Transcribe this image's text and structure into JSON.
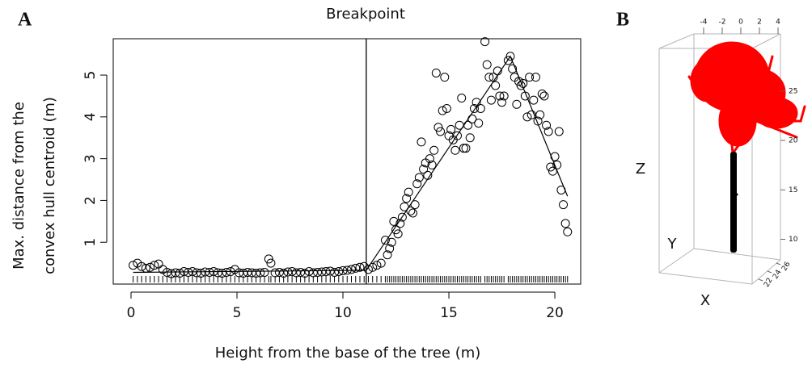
{
  "chart_data": [
    {
      "type": "scatter",
      "panel_label": "A",
      "title": "Breakpoint",
      "x_label": "Height from the base of the tree (m)",
      "y_label": [
        "Max. distance from the",
        "convex hull centroid (m)"
      ],
      "xlim": [
        -0.84,
        21.22
      ],
      "ylim": [
        0,
        5.87
      ],
      "xticks": [
        0,
        5,
        10,
        15,
        20
      ],
      "yticks": [
        1,
        2,
        3,
        4,
        5
      ],
      "breakpoint": 11.1,
      "rug": true,
      "series": [
        {
          "type": "scatter",
          "color": "#000000",
          "x": [
            0.1,
            0.3,
            0.5,
            0.7,
            0.9,
            1.1,
            1.3,
            1.5,
            1.7,
            1.9,
            2.1,
            2.3,
            2.5,
            2.7,
            2.9,
            3.1,
            3.3,
            3.5,
            3.7,
            3.9,
            4.1,
            4.3,
            4.5,
            4.7,
            4.9,
            5.1,
            5.3,
            5.5,
            5.7,
            5.9,
            6.1,
            6.3,
            6.5,
            6.6,
            6.8,
            7.0,
            7.2,
            7.4,
            7.6,
            7.8,
            8.0,
            8.2,
            8.4,
            8.6,
            8.8,
            9.0,
            9.2,
            9.4,
            9.6,
            9.8,
            10.0,
            10.2,
            10.4,
            10.6,
            10.8,
            11.0,
            11.2,
            11.4,
            11.6,
            11.8,
            12.0,
            12.1,
            12.2,
            12.3,
            12.4,
            12.5,
            12.6,
            12.7,
            12.8,
            12.9,
            13.0,
            13.1,
            13.2,
            13.3,
            13.4,
            13.5,
            13.6,
            13.7,
            13.8,
            13.9,
            14.0,
            14.1,
            14.2,
            14.3,
            14.4,
            14.5,
            14.6,
            14.7,
            14.8,
            14.9,
            15.0,
            15.1,
            15.2,
            15.3,
            15.4,
            15.5,
            15.6,
            15.7,
            15.8,
            15.9,
            16.0,
            16.1,
            16.2,
            16.3,
            16.4,
            16.5,
            16.7,
            16.8,
            16.9,
            17.0,
            17.1,
            17.2,
            17.3,
            17.4,
            17.5,
            17.6,
            17.8,
            17.9,
            18.0,
            18.1,
            18.2,
            18.3,
            18.4,
            18.5,
            18.6,
            18.7,
            18.8,
            18.9,
            19.0,
            19.1,
            19.2,
            19.3,
            19.4,
            19.5,
            19.6,
            19.7,
            19.8,
            19.9,
            20.0,
            20.1,
            20.2,
            20.3,
            20.4,
            20.5,
            20.6
          ],
          "values": [
            0.45,
            0.5,
            0.42,
            0.38,
            0.4,
            0.45,
            0.48,
            0.35,
            0.28,
            0.25,
            0.27,
            0.26,
            0.3,
            0.28,
            0.3,
            0.27,
            0.26,
            0.29,
            0.28,
            0.3,
            0.27,
            0.26,
            0.28,
            0.3,
            0.35,
            0.27,
            0.26,
            0.28,
            0.27,
            0.26,
            0.27,
            0.28,
            0.6,
            0.5,
            0.27,
            0.28,
            0.26,
            0.29,
            0.3,
            0.27,
            0.28,
            0.26,
            0.3,
            0.27,
            0.28,
            0.29,
            0.3,
            0.31,
            0.28,
            0.3,
            0.32,
            0.33,
            0.35,
            0.38,
            0.4,
            0.42,
            0.35,
            0.4,
            0.45,
            0.5,
            1.05,
            0.7,
            0.85,
            1.0,
            1.5,
            1.3,
            1.2,
            1.45,
            1.6,
            1.85,
            2.05,
            2.2,
            1.75,
            1.7,
            1.9,
            2.4,
            2.55,
            3.4,
            2.75,
            2.9,
            2.6,
            3.0,
            2.85,
            3.2,
            5.05,
            3.75,
            3.65,
            4.15,
            4.95,
            4.2,
            3.55,
            3.7,
            3.45,
            3.2,
            3.55,
            3.8,
            4.45,
            3.25,
            3.25,
            3.8,
            3.5,
            3.95,
            4.2,
            4.35,
            3.85,
            4.2,
            5.8,
            5.25,
            4.95,
            4.4,
            4.95,
            4.75,
            5.1,
            4.5,
            4.35,
            4.5,
            5.35,
            5.45,
            5.15,
            4.95,
            4.3,
            4.85,
            4.75,
            4.8,
            4.5,
            4.0,
            4.95,
            4.05,
            4.4,
            4.95,
            3.9,
            4.05,
            4.55,
            4.5,
            3.8,
            3.65,
            2.8,
            2.7,
            3.05,
            2.85,
            3.65,
            2.25,
            1.9,
            1.45,
            1.25
          ]
        },
        {
          "type": "line",
          "color": "#000000",
          "x": [
            0.1,
            11.1,
            17.9,
            20.6
          ],
          "values": [
            0.28,
            0.33,
            5.45,
            2.1
          ]
        }
      ]
    },
    {
      "type": "3d",
      "panel_label": "B",
      "x_label": "X",
      "y_label": "Y",
      "z_label": "Z",
      "xlim": [
        -4,
        4
      ],
      "xticks": [
        -4,
        -2,
        0,
        2,
        4
      ],
      "ylim": [
        22,
        26
      ],
      "yticks": [
        22,
        24,
        26
      ],
      "zlim": [
        8,
        28
      ],
      "zticks": [
        10,
        15,
        20,
        25
      ],
      "crown_color": "#ff0000",
      "trunk_color": "#000000"
    }
  ]
}
